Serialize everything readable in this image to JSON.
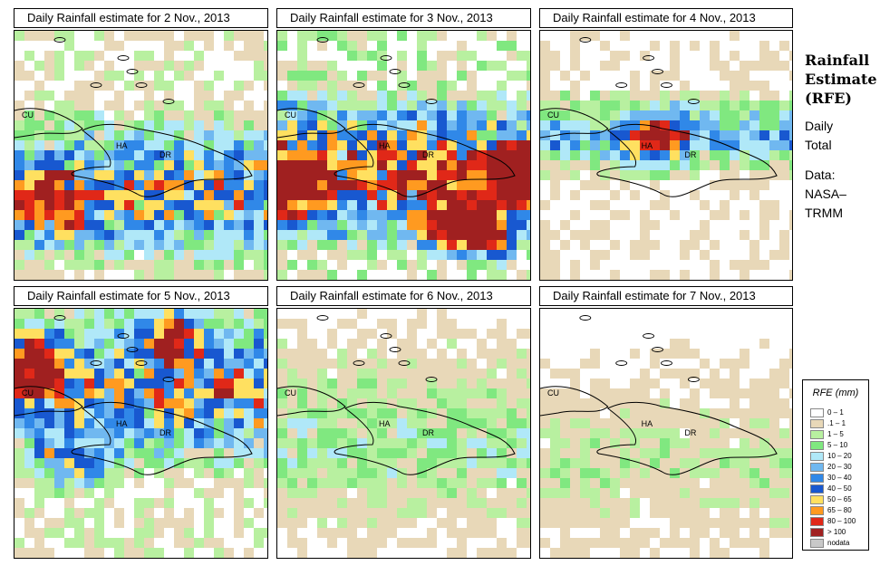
{
  "panels": [
    {
      "title": "Daily Rainfall estimate for  2 Nov., 2013",
      "date": "2 Nov., 2013"
    },
    {
      "title": "Daily Rainfall estimate for  3 Nov., 2013",
      "date": "3 Nov., 2013"
    },
    {
      "title": "Daily Rainfall estimate for  4 Nov., 2013",
      "date": "4 Nov., 2013"
    },
    {
      "title": "Daily Rainfall estimate for  5 Nov., 2013",
      "date": "5 Nov., 2013"
    },
    {
      "title": "Daily Rainfall estimate for  6 Nov., 2013",
      "date": "6 Nov., 2013"
    },
    {
      "title": "Daily Rainfall estimate for  7 Nov., 2013",
      "date": "7 Nov., 2013"
    }
  ],
  "map_labels": {
    "cuba": "CU",
    "haiti": "HA",
    "dominican_republic": "DR"
  },
  "side_panel": {
    "title_line1": "Rainfall",
    "title_line2": "Estimate",
    "title_line3": "(RFE)",
    "line1": "Daily",
    "line2": "Total",
    "line3": "Data:",
    "line4": "NASA–",
    "line5": "TRMM"
  },
  "legend": {
    "title": "RFE (mm)",
    "items": [
      {
        "label": "0 – 1",
        "color": "#ffffff"
      },
      {
        "label": ".1 – 1",
        "color": "#e8d8b8"
      },
      {
        "label": "1 – 5",
        "color": "#b8f0a0"
      },
      {
        "label": "5 – 10",
        "color": "#80e880"
      },
      {
        "label": "10 – 20",
        "color": "#b0e8f8"
      },
      {
        "label": "20 – 30",
        "color": "#70b8f0"
      },
      {
        "label": "30 – 40",
        "color": "#3088e8"
      },
      {
        "label": "40 – 50",
        "color": "#1858d0"
      },
      {
        "label": "50 – 65",
        "color": "#ffe060"
      },
      {
        "label": "65 – 80",
        "color": "#ff9a20"
      },
      {
        "label": "80 – 100",
        "color": "#e02818"
      },
      {
        "label": "> 100",
        "color": "#a02020"
      },
      {
        "label": "nodata",
        "color": "#c8c8c8"
      }
    ]
  }
}
